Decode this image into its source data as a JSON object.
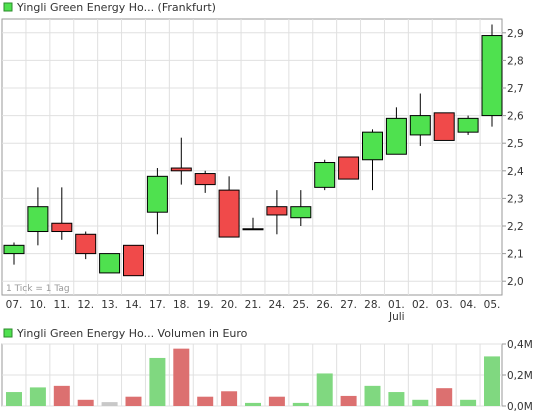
{
  "colors": {
    "up": "#4fe14f",
    "down": "#f04a4a",
    "neutral": "#c8c8c8",
    "vol_up": "#80d880",
    "vol_down": "#dc7070",
    "grid": "#e0e0e0",
    "frame": "#9a9a9a"
  },
  "price_panel": {
    "title": "Yingli Green Energy Ho... (Frankfurt)",
    "note": "1 Tick = 1 Tag"
  },
  "volume_panel": {
    "title": "Yingli Green Energy Ho... Volumen in Euro"
  },
  "month_label": "Juli",
  "chart_data": [
    {
      "type": "candlestick",
      "title": "Yingli Green Energy Ho... (Frankfurt)",
      "categories": [
        "07.",
        "10.",
        "11.",
        "12.",
        "13.",
        "14.",
        "17.",
        "18.",
        "19.",
        "20.",
        "21.",
        "24.",
        "25.",
        "26.",
        "27.",
        "28.",
        "01.",
        "02.",
        "03.",
        "04.",
        "05."
      ],
      "series": [
        {
          "open": 2.1,
          "close": 2.13,
          "high": 2.14,
          "low": 2.06
        },
        {
          "open": 2.18,
          "close": 2.27,
          "high": 2.34,
          "low": 2.13
        },
        {
          "open": 2.21,
          "close": 2.18,
          "high": 2.34,
          "low": 2.15
        },
        {
          "open": 2.17,
          "close": 2.1,
          "high": 2.18,
          "low": 2.08
        },
        {
          "open": 2.03,
          "close": 2.1,
          "high": 2.1,
          "low": 2.03
        },
        {
          "open": 2.13,
          "close": 2.02,
          "high": 2.13,
          "low": 2.02
        },
        {
          "open": 2.25,
          "close": 2.38,
          "high": 2.41,
          "low": 2.17
        },
        {
          "open": 2.41,
          "close": 2.4,
          "high": 2.52,
          "low": 2.35
        },
        {
          "open": 2.39,
          "close": 2.35,
          "high": 2.4,
          "low": 2.32
        },
        {
          "open": 2.33,
          "close": 2.16,
          "high": 2.38,
          "low": 2.16
        },
        {
          "open": 2.19,
          "close": 2.19,
          "high": 2.23,
          "low": 2.19
        },
        {
          "open": 2.27,
          "close": 2.24,
          "high": 2.33,
          "low": 2.17
        },
        {
          "open": 2.23,
          "close": 2.27,
          "high": 2.33,
          "low": 2.2
        },
        {
          "open": 2.34,
          "close": 2.43,
          "high": 2.44,
          "low": 2.33
        },
        {
          "open": 2.45,
          "close": 2.37,
          "high": 2.45,
          "low": 2.37
        },
        {
          "open": 2.44,
          "close": 2.54,
          "high": 2.55,
          "low": 2.33
        },
        {
          "open": 2.46,
          "close": 2.59,
          "high": 2.63,
          "low": 2.46
        },
        {
          "open": 2.53,
          "close": 2.6,
          "high": 2.68,
          "low": 2.49
        },
        {
          "open": 2.61,
          "close": 2.51,
          "high": 2.61,
          "low": 2.51
        },
        {
          "open": 2.54,
          "close": 2.59,
          "high": 2.6,
          "low": 2.53
        },
        {
          "open": 2.6,
          "close": 2.89,
          "high": 2.93,
          "low": 2.56
        }
      ],
      "y_ticks": [
        "2,0",
        "2,1",
        "2,2",
        "2,3",
        "2,4",
        "2,5",
        "2,6",
        "2,7",
        "2,8",
        "2,9"
      ],
      "ylim": [
        1.95,
        2.95
      ],
      "note": "1 Tick = 1 Tag",
      "grid": true
    },
    {
      "type": "bar",
      "title": "Yingli Green Energy Ho... Volumen in Euro",
      "categories": [
        "07.",
        "10.",
        "11.",
        "12.",
        "13.",
        "14.",
        "17.",
        "18.",
        "19.",
        "20.",
        "21.",
        "24.",
        "25.",
        "26.",
        "27.",
        "28.",
        "01.",
        "02.",
        "03.",
        "04.",
        "05."
      ],
      "values": [
        0.09,
        0.12,
        0.13,
        0.04,
        0.025,
        0.06,
        0.31,
        0.37,
        0.06,
        0.095,
        0.02,
        0.06,
        0.02,
        0.21,
        0.065,
        0.13,
        0.09,
        0.04,
        0.115,
        0.04,
        0.32
      ],
      "direction": [
        "up",
        "up",
        "down",
        "down",
        "neutral",
        "down",
        "up",
        "down",
        "down",
        "down",
        "up",
        "down",
        "up",
        "up",
        "down",
        "up",
        "up",
        "up",
        "down",
        "up",
        "up"
      ],
      "y_ticks": [
        "0,0M",
        "0,2M",
        "0,4M"
      ],
      "ylim": [
        0,
        0.4
      ],
      "grid": true
    }
  ]
}
